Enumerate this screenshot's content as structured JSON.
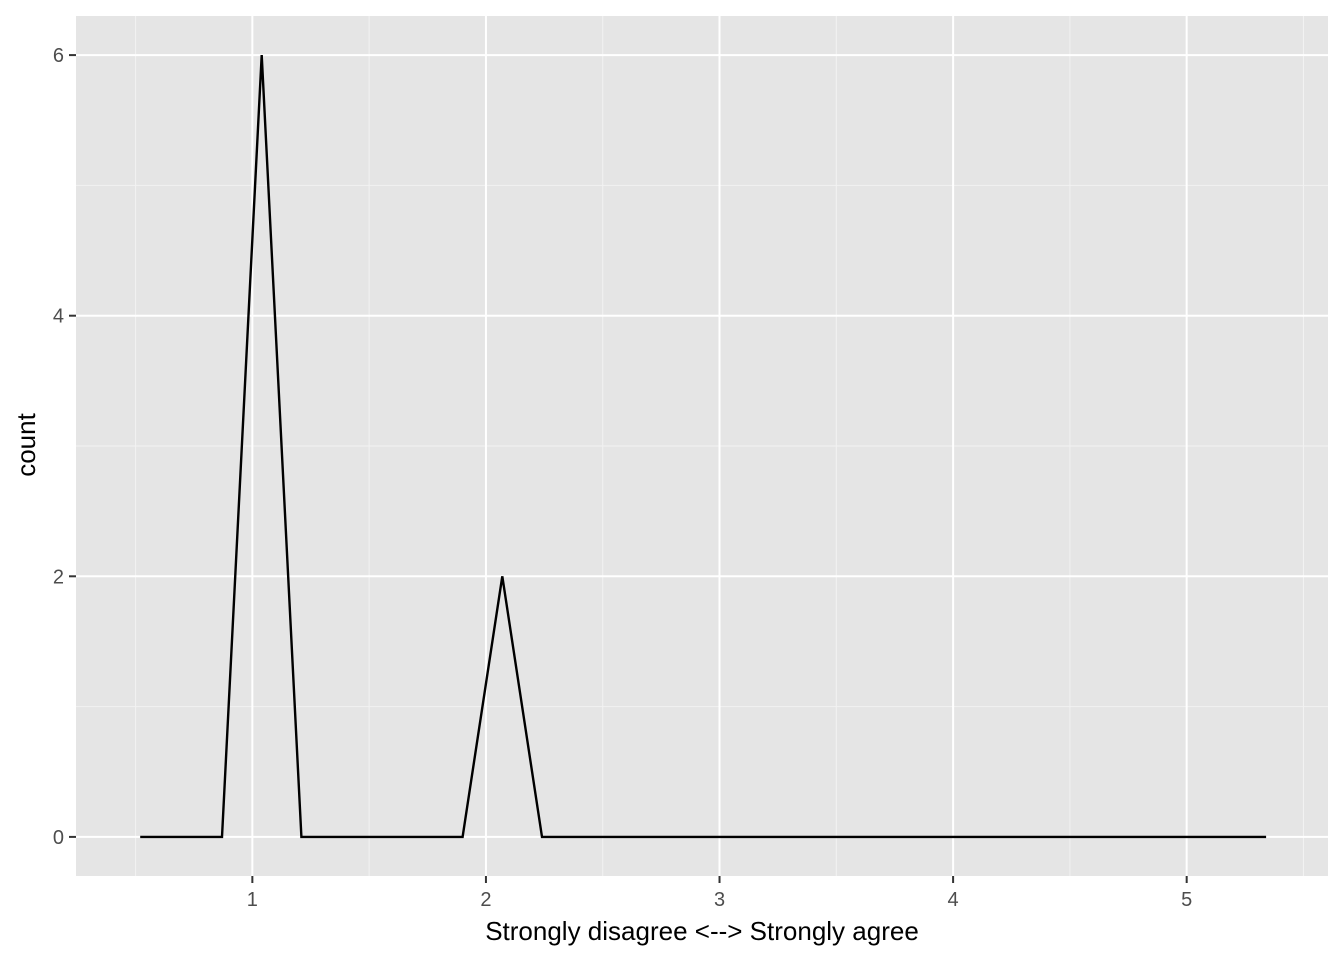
{
  "chart_data": {
    "type": "line",
    "title": "",
    "xlabel": "Strongly disagree <--> Strongly agree",
    "ylabel": "count",
    "xlim": [
      0.245,
      5.605
    ],
    "ylim": [
      -0.3,
      6.3
    ],
    "x_ticks": [
      1,
      2,
      3,
      4,
      5
    ],
    "y_ticks": [
      0,
      2,
      4,
      6
    ],
    "x_minor_ticks": [
      0.5,
      1.5,
      2.5,
      3.5,
      4.5,
      5.5
    ],
    "y_minor_ticks": [
      1,
      3,
      5
    ],
    "grid": true,
    "legend": "none",
    "series": [
      {
        "x": [
          0.52,
          0.87,
          1.04,
          1.21,
          1.9,
          2.07,
          2.24,
          5.34
        ],
        "values": [
          0,
          0,
          6,
          0,
          0,
          2,
          0,
          0
        ]
      }
    ],
    "colors": {
      "panel_background": "#e5e5e5",
      "grid_major": "#ffffff",
      "grid_minor": "#f2f2f2",
      "line": "#000000",
      "tick_mark": "#333333"
    }
  }
}
